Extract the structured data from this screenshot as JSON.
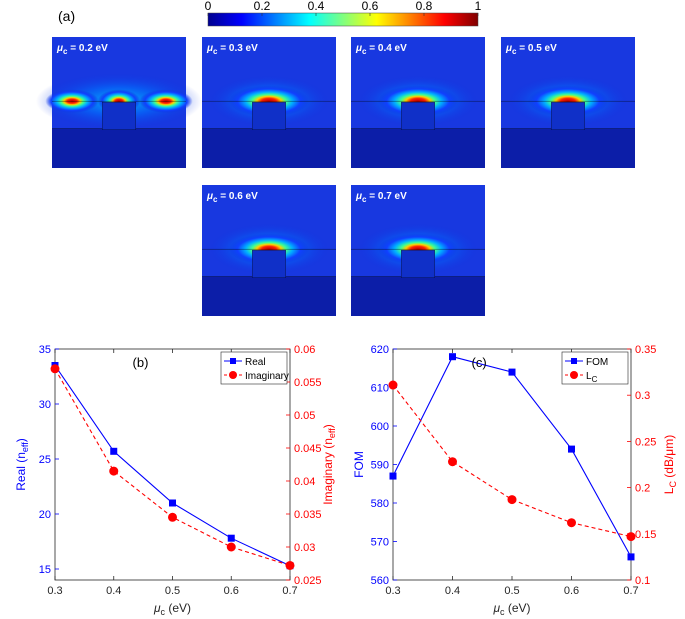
{
  "figure": {
    "panel_a_label": "(a)",
    "colorbar": {
      "ticks": [
        "0",
        "0.2",
        "0.4",
        "0.6",
        "0.8",
        "1"
      ],
      "min": 0,
      "max": 1
    },
    "mode_profiles": [
      {
        "mu_symbol": "μ",
        "mu_sub": "c",
        "label": " = 0.2 eV",
        "value_ev": 0.2
      },
      {
        "mu_symbol": "μ",
        "mu_sub": "c",
        "label": " = 0.3 eV",
        "value_ev": 0.3
      },
      {
        "mu_symbol": "μ",
        "mu_sub": "c",
        "label": " = 0.4 eV",
        "value_ev": 0.4
      },
      {
        "mu_symbol": "μ",
        "mu_sub": "c",
        "label": " = 0.5 eV",
        "value_ev": 0.5
      },
      {
        "mu_symbol": "μ",
        "mu_sub": "c",
        "label": " = 0.6 eV",
        "value_ev": 0.6
      },
      {
        "mu_symbol": "μ",
        "mu_sub": "c",
        "label": " = 0.7 eV",
        "value_ev": 0.7
      }
    ]
  },
  "colors": {
    "blue": "#0000ff",
    "red": "#ff0000",
    "axis": "#262626"
  },
  "chart_data": [
    {
      "type": "line",
      "panel_label": "(b)",
      "x": [
        0.3,
        0.4,
        0.5,
        0.6,
        0.7
      ],
      "x_ticks": [
        "0.3",
        "0.4",
        "0.5",
        "0.6",
        "0.7"
      ],
      "xlim": [
        0.3,
        0.7
      ],
      "xlabel": {
        "symbol": "μ",
        "sub": "c",
        "rest": " (eV)"
      },
      "ylabel_left": {
        "main": "Real (n",
        "sub": "eff",
        "end": ")"
      },
      "ylabel_right": {
        "main": "Imaginary (n",
        "sub": "eff",
        "end": ")"
      },
      "ylim_left": [
        14,
        35
      ],
      "yticks_left": [
        "15",
        "20",
        "25",
        "30",
        "35"
      ],
      "ylim_right": [
        0.025,
        0.06
      ],
      "yticks_right": [
        "0.03",
        "0.035",
        "0.04",
        "0.045",
        "0.05",
        "0.055",
        "0.06"
      ],
      "yticks_right_minor": [
        "0.025"
      ],
      "series": [
        {
          "name": "Real",
          "axis": "left",
          "color": "#0000ff",
          "marker": "square",
          "dash": "solid",
          "values": [
            33.5,
            25.7,
            21.0,
            17.8,
            15.3
          ]
        },
        {
          "name": "Imaginary",
          "axis": "right",
          "color": "#ff0000",
          "marker": "circle",
          "dash": "dashed",
          "values": [
            0.057,
            0.0415,
            0.0345,
            0.03,
            0.0272
          ]
        }
      ],
      "legend": {
        "position": "top-right",
        "entries": [
          "Real",
          "Imaginary"
        ]
      }
    },
    {
      "type": "line",
      "panel_label": "(c)",
      "x": [
        0.3,
        0.4,
        0.5,
        0.6,
        0.7
      ],
      "x_ticks": [
        "0.3",
        "0.4",
        "0.5",
        "0.6",
        "0.7"
      ],
      "xlim": [
        0.3,
        0.7
      ],
      "xlabel": {
        "symbol": "μ",
        "sub": "c",
        "rest": " (eV)"
      },
      "ylabel_left": {
        "main": "FOM",
        "sub": "",
        "end": ""
      },
      "ylabel_right": {
        "main": "L",
        "sub": "C",
        "end": " (dB/μm)"
      },
      "ylim_left": [
        560,
        620
      ],
      "yticks_left": [
        "560",
        "570",
        "580",
        "590",
        "600",
        "610",
        "620"
      ],
      "ylim_right": [
        0.1,
        0.35
      ],
      "yticks_right": [
        "0.1",
        "0.15",
        "0.2",
        "0.25",
        "0.3",
        "0.35"
      ],
      "series": [
        {
          "name": "FOM",
          "axis": "left",
          "color": "#0000ff",
          "marker": "square",
          "dash": "solid",
          "values": [
            587.0,
            618.0,
            614.0,
            594.0,
            566.0
          ]
        },
        {
          "name": "L",
          "name_sub": "C",
          "axis": "right",
          "color": "#ff0000",
          "marker": "circle",
          "dash": "dashed",
          "values": [
            0.311,
            0.228,
            0.187,
            0.162,
            0.147
          ]
        }
      ],
      "legend": {
        "position": "top-right",
        "entries": [
          "FOM",
          "LC"
        ]
      }
    }
  ]
}
